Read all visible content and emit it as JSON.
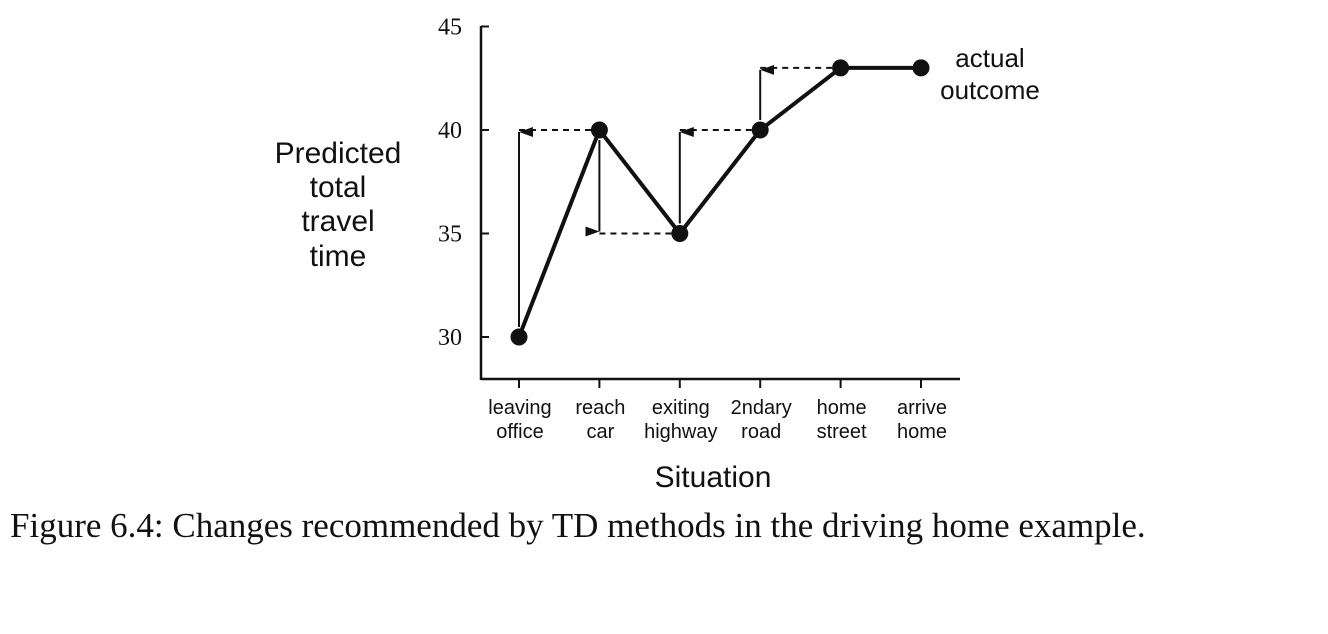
{
  "chart_data": {
    "type": "line",
    "title": "",
    "xlabel": "Situation",
    "ylabel": [
      "Predicted",
      "total",
      "travel",
      "time"
    ],
    "categories": [
      [
        "leaving",
        "office"
      ],
      [
        "reach",
        "car"
      ],
      [
        "exiting",
        "highway"
      ],
      [
        "2ndary",
        "road"
      ],
      [
        "home",
        "street"
      ],
      [
        "arrive",
        "home"
      ]
    ],
    "values": [
      30,
      40,
      35,
      40,
      43,
      43
    ],
    "yticks": [
      30,
      35,
      40,
      45
    ],
    "ylim": [
      28,
      45
    ],
    "grid": false,
    "td_updates": [
      {
        "from": 30,
        "to": 40,
        "at": 0
      },
      {
        "from": 40,
        "to": 35,
        "at": 1
      },
      {
        "from": 35,
        "to": 40,
        "at": 2
      },
      {
        "from": 40,
        "to": 43,
        "at": 3
      }
    ],
    "annotation": [
      "actual",
      "outcome"
    ]
  },
  "caption": {
    "text": "Figure 6.4: Changes recommended by TD methods in the driving home example."
  }
}
